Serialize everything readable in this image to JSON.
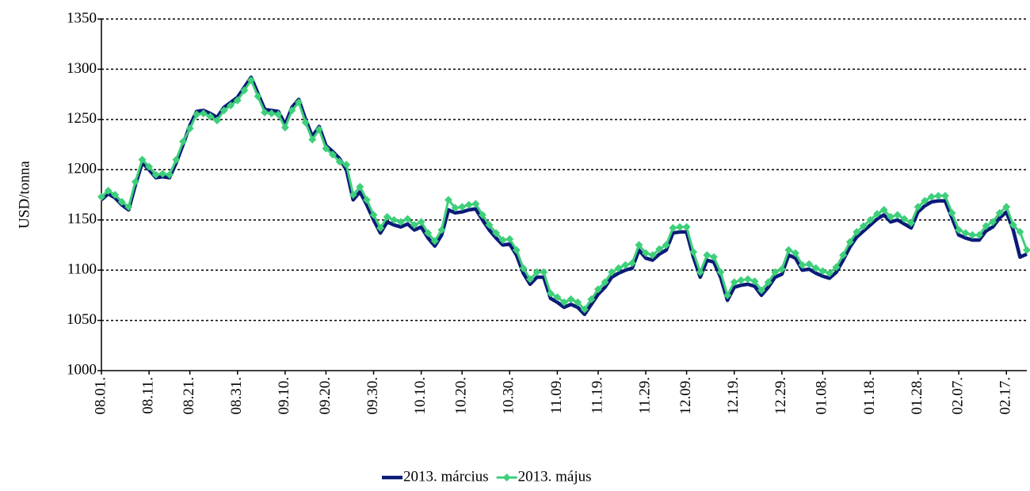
{
  "chart_data": {
    "type": "line",
    "y_label": "USD/tonna",
    "categories": [
      "08.01.",
      null,
      null,
      null,
      null,
      null,
      null,
      "08.11.",
      null,
      null,
      null,
      null,
      null,
      "08.21.",
      null,
      null,
      null,
      null,
      null,
      null,
      "08.31.",
      null,
      null,
      null,
      null,
      null,
      null,
      "09.10.",
      null,
      null,
      null,
      null,
      null,
      "09.20.",
      null,
      null,
      null,
      null,
      null,
      null,
      "09.30.",
      null,
      null,
      null,
      null,
      null,
      null,
      "10.10.",
      null,
      null,
      null,
      null,
      null,
      "10.20.",
      null,
      null,
      null,
      null,
      null,
      null,
      "10.30.",
      null,
      null,
      null,
      null,
      null,
      null,
      "11.09.",
      null,
      null,
      null,
      null,
      null,
      "11.19.",
      null,
      null,
      null,
      null,
      null,
      null,
      "11.29.",
      null,
      null,
      null,
      null,
      null,
      "12.09.",
      null,
      null,
      null,
      null,
      null,
      null,
      "12.19.",
      null,
      null,
      null,
      null,
      null,
      null,
      "12.29.",
      null,
      null,
      null,
      null,
      null,
      "01.08.",
      null,
      null,
      null,
      null,
      null,
      null,
      "01.18.",
      null,
      null,
      null,
      null,
      null,
      null,
      "01.28.",
      null,
      null,
      null,
      null,
      null,
      "02.07.",
      null,
      null,
      null,
      null,
      null,
      null,
      "02.17.",
      null,
      null,
      null
    ],
    "series": [
      {
        "name": "2013. március",
        "color": "#0b1a78",
        "values": [
          1170,
          1176,
          1172,
          1165,
          1160,
          1185,
          1207,
          1200,
          1192,
          1193,
          1192,
          1207,
          1225,
          1244,
          1258,
          1259,
          1256,
          1252,
          1262,
          1267,
          1272,
          1282,
          1292,
          1276,
          1260,
          1259,
          1258,
          1245,
          1262,
          1270,
          1250,
          1233,
          1243,
          1224,
          1218,
          1211,
          1200,
          1170,
          1178,
          1165,
          1150,
          1137,
          1148,
          1145,
          1143,
          1146,
          1140,
          1143,
          1132,
          1124,
          1135,
          1160,
          1157,
          1158,
          1160,
          1161,
          1150,
          1140,
          1132,
          1125,
          1126,
          1115,
          1097,
          1086,
          1093,
          1093,
          1072,
          1068,
          1063,
          1066,
          1063,
          1056,
          1066,
          1076,
          1083,
          1093,
          1097,
          1100,
          1102,
          1120,
          1112,
          1110,
          1116,
          1120,
          1137,
          1138,
          1138,
          1113,
          1093,
          1110,
          1108,
          1093,
          1070,
          1083,
          1085,
          1086,
          1084,
          1075,
          1083,
          1093,
          1096,
          1115,
          1112,
          1100,
          1101,
          1097,
          1094,
          1092,
          1098,
          1110,
          1123,
          1133,
          1139,
          1145,
          1151,
          1155,
          1148,
          1150,
          1146,
          1142,
          1158,
          1164,
          1168,
          1169,
          1169,
          1152,
          1135,
          1132,
          1130,
          1130,
          1139,
          1143,
          1152,
          1158,
          1140,
          1113,
          1116
        ]
      },
      {
        "name": "2013. május",
        "color": "#3ecf7a",
        "values": [
          1173,
          1179,
          1175,
          1168,
          1163,
          1188,
          1210,
          1203,
          1195,
          1196,
          1195,
          1210,
          1228,
          1241,
          1255,
          1256,
          1253,
          1249,
          1259,
          1264,
          1269,
          1279,
          1289,
          1273,
          1257,
          1256,
          1255,
          1242,
          1259,
          1267,
          1247,
          1230,
          1240,
          1221,
          1215,
          1208,
          1205,
          1175,
          1183,
          1170,
          1155,
          1142,
          1153,
          1150,
          1148,
          1151,
          1145,
          1148,
          1137,
          1129,
          1140,
          1170,
          1162,
          1163,
          1165,
          1166,
          1155,
          1145,
          1137,
          1130,
          1131,
          1120,
          1102,
          1091,
          1098,
          1098,
          1077,
          1073,
          1068,
          1071,
          1068,
          1061,
          1071,
          1081,
          1088,
          1098,
          1102,
          1105,
          1107,
          1125,
          1117,
          1115,
          1121,
          1125,
          1142,
          1143,
          1143,
          1118,
          1098,
          1115,
          1113,
          1098,
          1075,
          1088,
          1090,
          1091,
          1089,
          1080,
          1088,
          1098,
          1101,
          1120,
          1117,
          1105,
          1106,
          1102,
          1099,
          1097,
          1103,
          1115,
          1128,
          1138,
          1144,
          1150,
          1156,
          1160,
          1153,
          1155,
          1151,
          1147,
          1163,
          1169,
          1173,
          1174,
          1174,
          1157,
          1140,
          1137,
          1135,
          1135,
          1144,
          1148,
          1157,
          1163,
          1145,
          1138,
          1120
        ]
      }
    ],
    "ylim": [
      1000,
      1350
    ],
    "yticks": [
      1000,
      1050,
      1100,
      1150,
      1200,
      1250,
      1300,
      1350
    ],
    "grid": true,
    "legend": "bottom"
  }
}
